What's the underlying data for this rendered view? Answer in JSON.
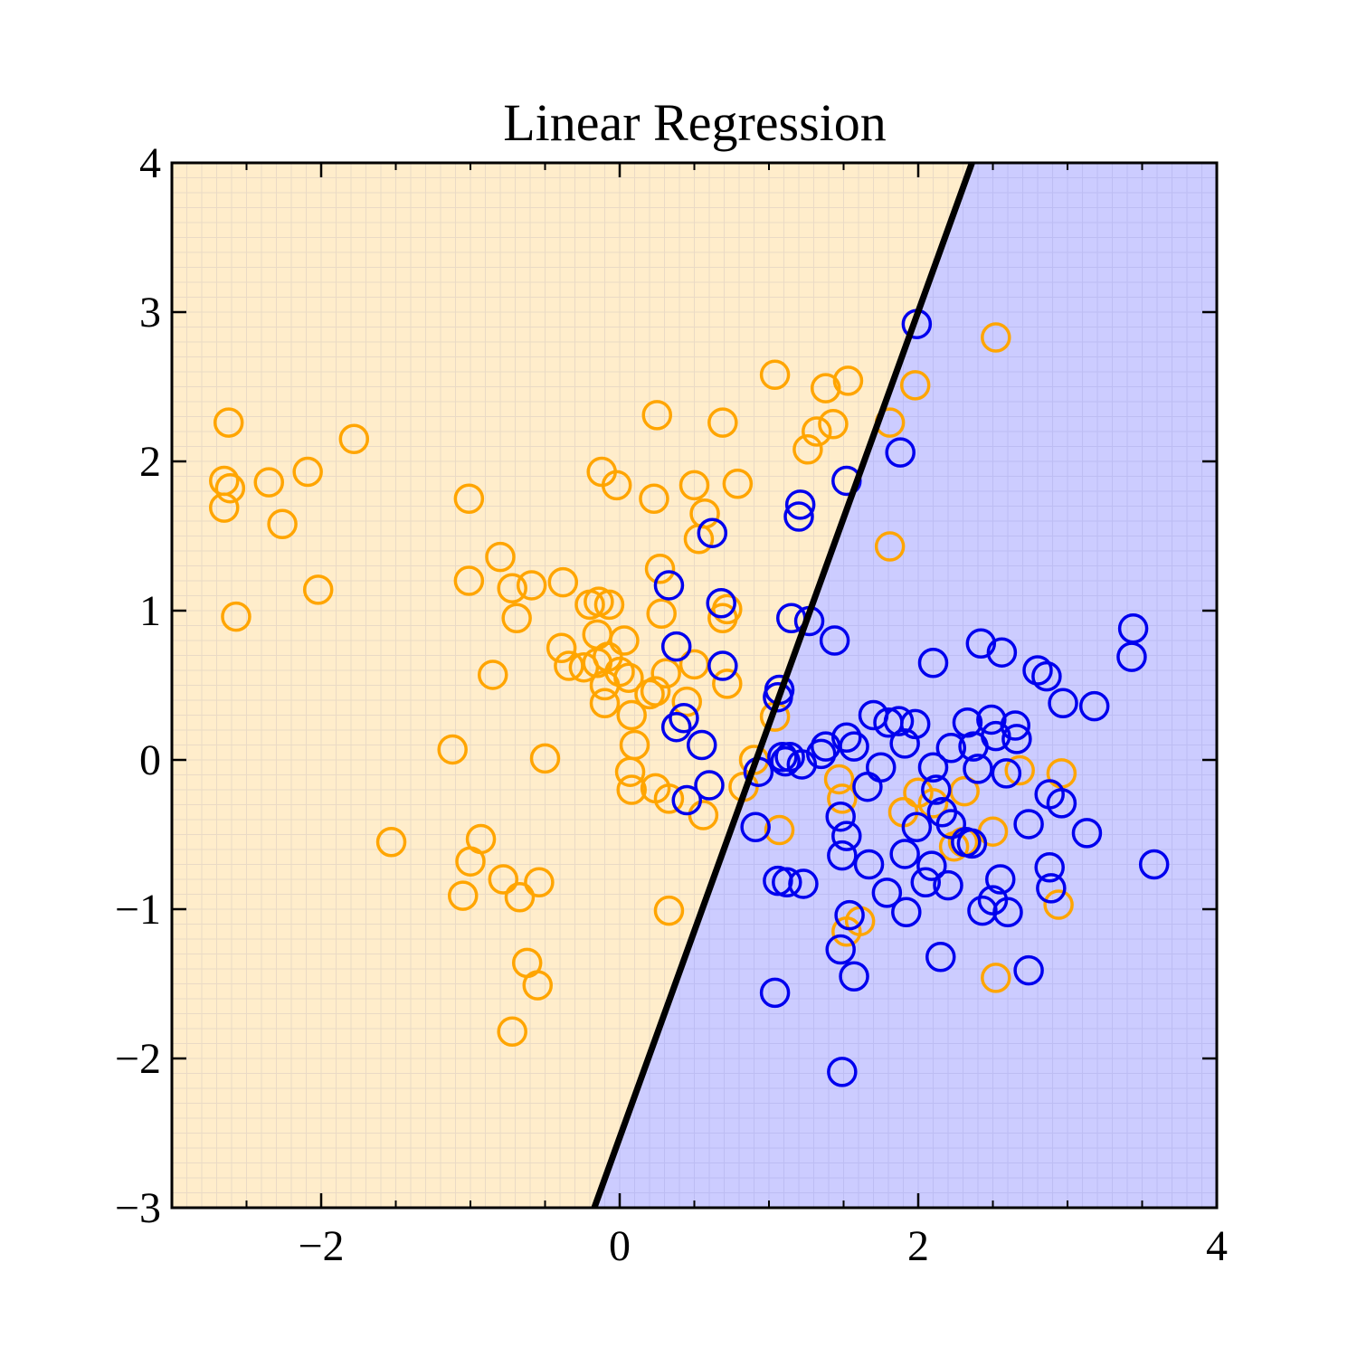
{
  "chart_data": {
    "type": "scatter",
    "title": "Linear Regression",
    "xlabel": "",
    "ylabel": "",
    "xlim": [
      -3,
      4
    ],
    "ylim": [
      -3,
      4
    ],
    "xticks": [
      -2,
      0,
      2,
      4
    ],
    "yticks": [
      -3,
      -2,
      -1,
      0,
      1,
      2,
      3,
      4
    ],
    "xtick_labels": [
      "−2",
      "0",
      "2",
      "4"
    ],
    "ytick_labels": [
      "−3",
      "−2",
      "−1",
      "0",
      "1",
      "2",
      "3",
      "4"
    ],
    "grid": false,
    "legend": "none",
    "background_grid_cells": 70,
    "decision_boundary": {
      "points": [
        [
          -0.17,
          -3.0
        ],
        [
          2.36,
          4.0
        ]
      ],
      "color": "#000000"
    },
    "region_colors": {
      "orange": "#ffedcb",
      "blue": "#ccccff"
    },
    "series": [
      {
        "color": "#ffa500",
        "points": [
          [
            -2.62,
            2.26
          ],
          [
            -2.65,
            1.87
          ],
          [
            -2.61,
            1.82
          ],
          [
            -2.65,
            1.69
          ],
          [
            -2.35,
            1.86
          ],
          [
            -2.09,
            1.93
          ],
          [
            -2.26,
            1.58
          ],
          [
            -1.78,
            2.15
          ],
          [
            -2.02,
            1.14
          ],
          [
            -2.57,
            0.96
          ],
          [
            -1.01,
            1.75
          ],
          [
            -0.8,
            1.36
          ],
          [
            -1.01,
            1.2
          ],
          [
            -0.72,
            1.15
          ],
          [
            -0.59,
            1.17
          ],
          [
            -0.38,
            1.19
          ],
          [
            -0.69,
            0.95
          ],
          [
            -0.85,
            0.57
          ],
          [
            -1.12,
            0.07
          ],
          [
            -0.5,
            0.01
          ],
          [
            -1.53,
            -0.55
          ],
          [
            -0.93,
            -0.53
          ],
          [
            -1.0,
            -0.68
          ],
          [
            -0.78,
            -0.8
          ],
          [
            -1.05,
            -0.91
          ],
          [
            -0.67,
            -0.92
          ],
          [
            -0.54,
            -0.82
          ],
          [
            -0.62,
            -1.36
          ],
          [
            -0.55,
            -1.51
          ],
          [
            -0.72,
            -1.82
          ],
          [
            -0.12,
            1.93
          ],
          [
            -0.02,
            1.84
          ],
          [
            0.23,
            1.75
          ],
          [
            0.25,
            2.31
          ],
          [
            0.69,
            2.26
          ],
          [
            0.79,
            1.85
          ],
          [
            0.5,
            1.84
          ],
          [
            0.57,
            1.65
          ],
          [
            0.53,
            1.48
          ],
          [
            0.27,
            1.28
          ],
          [
            -0.2,
            1.04
          ],
          [
            -0.14,
            1.06
          ],
          [
            -0.07,
            1.04
          ],
          [
            0.28,
            0.98
          ],
          [
            0.69,
            0.95
          ],
          [
            0.72,
            1.01
          ],
          [
            -0.15,
            0.84
          ],
          [
            -0.39,
            0.75
          ],
          [
            -0.34,
            0.63
          ],
          [
            -0.24,
            0.62
          ],
          [
            -0.15,
            0.65
          ],
          [
            -0.08,
            0.69
          ],
          [
            0.03,
            0.8
          ],
          [
            0.0,
            0.59
          ],
          [
            0.06,
            0.55
          ],
          [
            -0.1,
            0.5
          ],
          [
            -0.1,
            0.38
          ],
          [
            0.31,
            0.58
          ],
          [
            0.5,
            0.64
          ],
          [
            0.72,
            0.51
          ],
          [
            0.2,
            0.44
          ],
          [
            0.24,
            0.46
          ],
          [
            0.45,
            0.39
          ],
          [
            0.08,
            0.3
          ],
          [
            0.1,
            0.1
          ],
          [
            0.07,
            -0.08
          ],
          [
            0.08,
            -0.2
          ],
          [
            0.24,
            -0.19
          ],
          [
            0.33,
            -0.26
          ],
          [
            0.56,
            -0.37
          ],
          [
            0.33,
            -1.01
          ],
          [
            1.04,
            2.58
          ],
          [
            1.38,
            2.49
          ],
          [
            1.53,
            2.54
          ],
          [
            1.32,
            2.2
          ],
          [
            1.43,
            2.25
          ],
          [
            1.26,
            2.08
          ],
          [
            1.81,
            2.26
          ],
          [
            1.98,
            2.51
          ],
          [
            2.52,
            2.83
          ],
          [
            1.81,
            1.43
          ],
          [
            1.04,
            0.29
          ],
          [
            0.9,
            0.0
          ],
          [
            0.83,
            -0.18
          ],
          [
            1.07,
            -0.47
          ],
          [
            1.47,
            -0.13
          ],
          [
            1.49,
            -0.26
          ],
          [
            1.9,
            -0.35
          ],
          [
            2.0,
            -0.22
          ],
          [
            2.1,
            -0.29
          ],
          [
            2.31,
            -0.21
          ],
          [
            2.3,
            -0.55
          ],
          [
            2.24,
            -0.58
          ],
          [
            2.5,
            -0.48
          ],
          [
            2.68,
            -0.07
          ],
          [
            2.96,
            -0.09
          ],
          [
            2.94,
            -0.97
          ],
          [
            2.52,
            -1.46
          ],
          [
            1.61,
            -1.08
          ],
          [
            1.52,
            -1.15
          ]
        ]
      },
      {
        "color": "#0000ee",
        "points": [
          [
            1.99,
            2.92
          ],
          [
            1.88,
            2.06
          ],
          [
            1.52,
            1.87
          ],
          [
            1.21,
            1.71
          ],
          [
            1.2,
            1.63
          ],
          [
            0.62,
            1.52
          ],
          [
            0.33,
            1.17
          ],
          [
            0.68,
            1.05
          ],
          [
            1.15,
            0.95
          ],
          [
            1.27,
            0.93
          ],
          [
            1.44,
            0.8
          ],
          [
            0.38,
            0.76
          ],
          [
            0.69,
            0.63
          ],
          [
            1.07,
            0.47
          ],
          [
            1.06,
            0.42
          ],
          [
            0.38,
            0.22
          ],
          [
            0.43,
            0.28
          ],
          [
            0.55,
            0.1
          ],
          [
            1.09,
            0.02
          ],
          [
            1.14,
            0.02
          ],
          [
            1.11,
            -0.01
          ],
          [
            1.22,
            -0.03
          ],
          [
            1.35,
            0.04
          ],
          [
            1.38,
            0.09
          ],
          [
            1.52,
            0.15
          ],
          [
            1.57,
            0.09
          ],
          [
            1.7,
            0.3
          ],
          [
            1.8,
            0.25
          ],
          [
            1.87,
            0.26
          ],
          [
            1.91,
            0.11
          ],
          [
            1.98,
            0.24
          ],
          [
            2.1,
            0.65
          ],
          [
            2.42,
            0.78
          ],
          [
            2.56,
            0.72
          ],
          [
            2.8,
            0.6
          ],
          [
            2.86,
            0.56
          ],
          [
            2.97,
            0.38
          ],
          [
            3.18,
            0.36
          ],
          [
            3.44,
            0.88
          ],
          [
            3.43,
            0.69
          ],
          [
            2.1,
            -0.05
          ],
          [
            2.22,
            0.08
          ],
          [
            2.33,
            0.25
          ],
          [
            2.37,
            0.09
          ],
          [
            2.4,
            -0.06
          ],
          [
            2.49,
            0.27
          ],
          [
            2.52,
            0.16
          ],
          [
            2.59,
            -0.09
          ],
          [
            2.65,
            0.23
          ],
          [
            2.66,
            0.14
          ],
          [
            2.74,
            -0.43
          ],
          [
            2.88,
            -0.23
          ],
          [
            2.96,
            -0.29
          ],
          [
            3.13,
            -0.49
          ],
          [
            2.88,
            -0.72
          ],
          [
            2.89,
            -0.86
          ],
          [
            3.58,
            -0.7
          ],
          [
            1.66,
            -0.18
          ],
          [
            1.75,
            -0.05
          ],
          [
            2.12,
            -0.2
          ],
          [
            2.16,
            -0.35
          ],
          [
            2.22,
            -0.43
          ],
          [
            2.32,
            -0.55
          ],
          [
            2.36,
            -0.56
          ],
          [
            1.48,
            -0.38
          ],
          [
            1.52,
            -0.51
          ],
          [
            1.49,
            -0.64
          ],
          [
            1.91,
            -0.63
          ],
          [
            1.99,
            -0.45
          ],
          [
            2.09,
            -0.71
          ],
          [
            1.67,
            -0.7
          ],
          [
            1.79,
            -0.89
          ],
          [
            1.92,
            -1.02
          ],
          [
            2.05,
            -0.82
          ],
          [
            2.2,
            -0.84
          ],
          [
            2.43,
            -1.01
          ],
          [
            2.5,
            -0.94
          ],
          [
            2.55,
            -0.8
          ],
          [
            2.6,
            -1.02
          ],
          [
            2.74,
            -1.41
          ],
          [
            0.91,
            -0.45
          ],
          [
            1.06,
            -0.81
          ],
          [
            1.12,
            -0.82
          ],
          [
            1.23,
            -0.83
          ],
          [
            1.54,
            -1.04
          ],
          [
            1.48,
            -1.27
          ],
          [
            1.57,
            -1.45
          ],
          [
            1.04,
            -1.56
          ],
          [
            2.15,
            -1.32
          ],
          [
            1.49,
            -2.09
          ],
          [
            0.45,
            -0.27
          ],
          [
            0.6,
            -0.17
          ],
          [
            0.93,
            -0.08
          ]
        ]
      }
    ]
  }
}
